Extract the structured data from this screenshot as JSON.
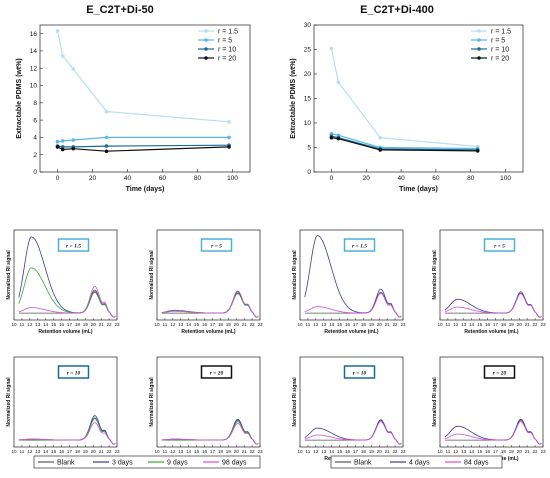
{
  "chart_data": [
    {
      "type": "line",
      "title": "E_C2T+Di-50",
      "xlabel": "Time (days)",
      "ylabel": "Extractable PDMS (wt%)",
      "xlim": [
        -10,
        110
      ],
      "ylim": [
        0,
        17
      ],
      "xticks": [
        "0",
        "20",
        "40",
        "60",
        "80",
        "100"
      ],
      "yticks": [
        "0",
        "2",
        "4",
        "6",
        "8",
        "10",
        "12",
        "14",
        "16"
      ],
      "legend_position": "top-right",
      "series": [
        {
          "name": "r = 1.5",
          "color": "#b8dff0",
          "x": [
            0,
            3,
            9,
            28,
            98
          ],
          "y": [
            16.3,
            13.4,
            11.9,
            7.0,
            5.8
          ]
        },
        {
          "name": "r = 5",
          "color": "#5bb8e0",
          "x": [
            0,
            3,
            9,
            28,
            98
          ],
          "y": [
            3.5,
            3.6,
            3.7,
            4.0,
            4.0
          ]
        },
        {
          "name": "r = 10",
          "color": "#1a6a9a",
          "x": [
            0,
            3,
            9,
            28,
            98
          ],
          "y": [
            3.0,
            2.9,
            2.9,
            3.0,
            3.1
          ]
        },
        {
          "name": "r = 20",
          "color": "#111111",
          "x": [
            0,
            3,
            9,
            28,
            98
          ],
          "y": [
            2.9,
            2.6,
            2.7,
            2.4,
            2.9
          ]
        }
      ]
    },
    {
      "type": "line",
      "title": "E_C2T+Di-400",
      "xlabel": "Time (days)",
      "ylabel": "Extractable PDMS (wt%)",
      "xlim": [
        -10,
        110
      ],
      "ylim": [
        0,
        30
      ],
      "xticks": [
        "0",
        "20",
        "40",
        "60",
        "80",
        "100"
      ],
      "yticks": [
        "0",
        "5",
        "10",
        "15",
        "20",
        "25",
        "30"
      ],
      "legend_position": "top-right",
      "series": [
        {
          "name": "r = 1.5",
          "color": "#b8dff0",
          "x": [
            0,
            4,
            28,
            84
          ],
          "y": [
            25.2,
            18.3,
            7.0,
            5.2
          ]
        },
        {
          "name": "r = 5",
          "color": "#5bb8e0",
          "x": [
            0,
            4,
            28,
            84
          ],
          "y": [
            7.8,
            7.5,
            5.0,
            4.8
          ]
        },
        {
          "name": "r = 10",
          "color": "#1a6a9a",
          "x": [
            0,
            4,
            28,
            84
          ],
          "y": [
            7.3,
            7.0,
            4.7,
            4.5
          ]
        },
        {
          "name": "r = 20",
          "color": "#111111",
          "x": [
            0,
            4,
            28,
            84
          ],
          "y": [
            7.0,
            6.8,
            4.5,
            4.3
          ]
        }
      ]
    },
    {
      "type": "line",
      "group": "E_C2T+Di-50",
      "box_label": "r = 1.5",
      "xlabel": "Retention volume (mL)",
      "ylabel": "Normalized RI signal",
      "xlim": [
        10,
        23
      ],
      "ylim": [
        -1.5,
        18
      ],
      "xticks": [
        "10",
        "11",
        "12",
        "13",
        "14",
        "15",
        "16",
        "17",
        "18",
        "19",
        "20",
        "21",
        "22",
        "23"
      ],
      "legend": [
        "Blank",
        "3 days",
        "9 days",
        "98 days"
      ],
      "peaks": [
        {
          "amp1": 0,
          "amp2": 4.5
        },
        {
          "amp1": 16.5,
          "amp2": 5.0
        },
        {
          "amp1": 9.8,
          "amp2": 4.7
        },
        {
          "amp1": 1.2,
          "amp2": 5.8
        }
      ]
    },
    {
      "type": "line",
      "group": "E_C2T+Di-50",
      "box_label": "r = 5",
      "xlabel": "Retention volume (mL)",
      "ylabel": "Normalized RI signal",
      "xlim": [
        10,
        23
      ],
      "ylim": [
        -1.5,
        18
      ],
      "xticks": [
        "10",
        "11",
        "12",
        "13",
        "14",
        "15",
        "16",
        "17",
        "18",
        "19",
        "20",
        "21",
        "22",
        "23"
      ],
      "legend": [
        "Blank",
        "3 days",
        "9 days",
        "98 days"
      ],
      "peaks": [
        {
          "amp1": 0,
          "amp2": 4.3
        },
        {
          "amp1": 0.6,
          "amp2": 4.6
        },
        {
          "amp1": 0.4,
          "amp2": 4.2
        },
        {
          "amp1": 0.5,
          "amp2": 4.8
        }
      ]
    },
    {
      "type": "line",
      "group": "E_C2T+Di-50",
      "box_label": "r = 10",
      "xlabel": "Retention volume (mL)",
      "ylabel": "Normalized RI signal",
      "xlim": [
        10,
        23
      ],
      "ylim": [
        -1.5,
        18
      ],
      "xticks": [
        "10",
        "11",
        "12",
        "13",
        "14",
        "15",
        "16",
        "17",
        "18",
        "19",
        "20",
        "21",
        "22",
        "23"
      ],
      "legend": [
        "Blank",
        "3 days",
        "9 days",
        "98 days"
      ],
      "peaks": [
        {
          "amp1": 0,
          "amp2": 4.8
        },
        {
          "amp1": 0.2,
          "amp2": 5.3
        },
        {
          "amp1": 0.1,
          "amp2": 4.6
        },
        {
          "amp1": 0.2,
          "amp2": 3.8
        }
      ]
    },
    {
      "type": "line",
      "group": "E_C2T+Di-50",
      "box_label": "r = 20",
      "xlabel": "Retention volume (mL)",
      "ylabel": "Normalized RI signal",
      "xlim": [
        10,
        23
      ],
      "ylim": [
        -1.5,
        18
      ],
      "xticks": [
        "10",
        "11",
        "12",
        "13",
        "14",
        "15",
        "16",
        "17",
        "18",
        "19",
        "20",
        "21",
        "22",
        "23"
      ],
      "legend": [
        "Blank",
        "3 days",
        "9 days",
        "98 days"
      ],
      "peaks": [
        {
          "amp1": 0,
          "amp2": 4.3
        },
        {
          "amp1": 0.2,
          "amp2": 4.5
        },
        {
          "amp1": 0.1,
          "amp2": 4.0
        },
        {
          "amp1": 0.2,
          "amp2": 3.6
        }
      ]
    },
    {
      "type": "line",
      "group": "E_C2T+Di-400",
      "box_label": "r = 1.5",
      "xlabel": "Retention volume (mL)",
      "ylabel": "Normalized RI signal",
      "xlim": [
        10,
        23
      ],
      "ylim": [
        -1.5,
        18
      ],
      "xticks": [
        "10",
        "11",
        "12",
        "13",
        "14",
        "15",
        "16",
        "17",
        "18",
        "19",
        "20",
        "21",
        "22",
        "23"
      ],
      "legend": [
        "Blank",
        "4 days",
        "84 days"
      ],
      "peaks": [
        {
          "amp1": 0,
          "amp2": 4.5
        },
        {
          "amp1": 16.8,
          "amp2": 5.2
        },
        {
          "amp1": 1.4,
          "amp2": 4.3
        }
      ]
    },
    {
      "type": "line",
      "group": "E_C2T+Di-400",
      "box_label": "r = 5",
      "xlabel": "Retention volume (mL)",
      "ylabel": "Normalized RI signal",
      "xlim": [
        10,
        23
      ],
      "ylim": [
        -1.5,
        18
      ],
      "xticks": [
        "10",
        "11",
        "12",
        "13",
        "14",
        "15",
        "16",
        "17",
        "18",
        "19",
        "20",
        "21",
        "22",
        "23"
      ],
      "legend": [
        "Blank",
        "4 days",
        "84 days"
      ],
      "peaks": [
        {
          "amp1": 0,
          "amp2": 4.3
        },
        {
          "amp1": 3.0,
          "amp2": 4.6
        },
        {
          "amp1": 1.3,
          "amp2": 4.2
        }
      ]
    },
    {
      "type": "line",
      "group": "E_C2T+Di-400",
      "box_label": "r = 10",
      "xlabel": "Retention volume (mL)",
      "ylabel": "Normalized RI signal",
      "xlim": [
        10,
        23
      ],
      "ylim": [
        -1.5,
        18
      ],
      "xticks": [
        "10",
        "11",
        "12",
        "13",
        "14",
        "15",
        "16",
        "17",
        "18",
        "19",
        "20",
        "21",
        "22",
        "23"
      ],
      "legend": [
        "Blank",
        "4 days",
        "84 days"
      ],
      "peaks": [
        {
          "amp1": 0,
          "amp2": 4.3
        },
        {
          "amp1": 2.6,
          "amp2": 4.4
        },
        {
          "amp1": 1.1,
          "amp2": 4.0
        }
      ]
    },
    {
      "type": "line",
      "group": "E_C2T+Di-400",
      "box_label": "r = 20",
      "xlabel": "Retention volume (mL)",
      "ylabel": "Normalized RI signal",
      "xlim": [
        10,
        23
      ],
      "ylim": [
        -1.5,
        18
      ],
      "xticks": [
        "10",
        "11",
        "12",
        "13",
        "14",
        "15",
        "16",
        "17",
        "18",
        "19",
        "20",
        "21",
        "22",
        "23"
      ],
      "legend": [
        "Blank",
        "4 days",
        "84 days"
      ],
      "peaks": [
        {
          "amp1": 0,
          "amp2": 4.3
        },
        {
          "amp1": 3.0,
          "amp2": 4.5
        },
        {
          "amp1": 1.3,
          "amp2": 4.0
        }
      ]
    }
  ],
  "gpc_legends": {
    "left": {
      "entries": [
        "Blank",
        "3 days",
        "9 days",
        "98 days"
      ],
      "colors": [
        "#555555",
        "#3a3a9e",
        "#3aa83a",
        "#d44fd4"
      ]
    },
    "right": {
      "entries": [
        "Blank",
        "4 days",
        "84 days"
      ],
      "colors": [
        "#555555",
        "#3a3a9e",
        "#d44fd4"
      ]
    }
  }
}
